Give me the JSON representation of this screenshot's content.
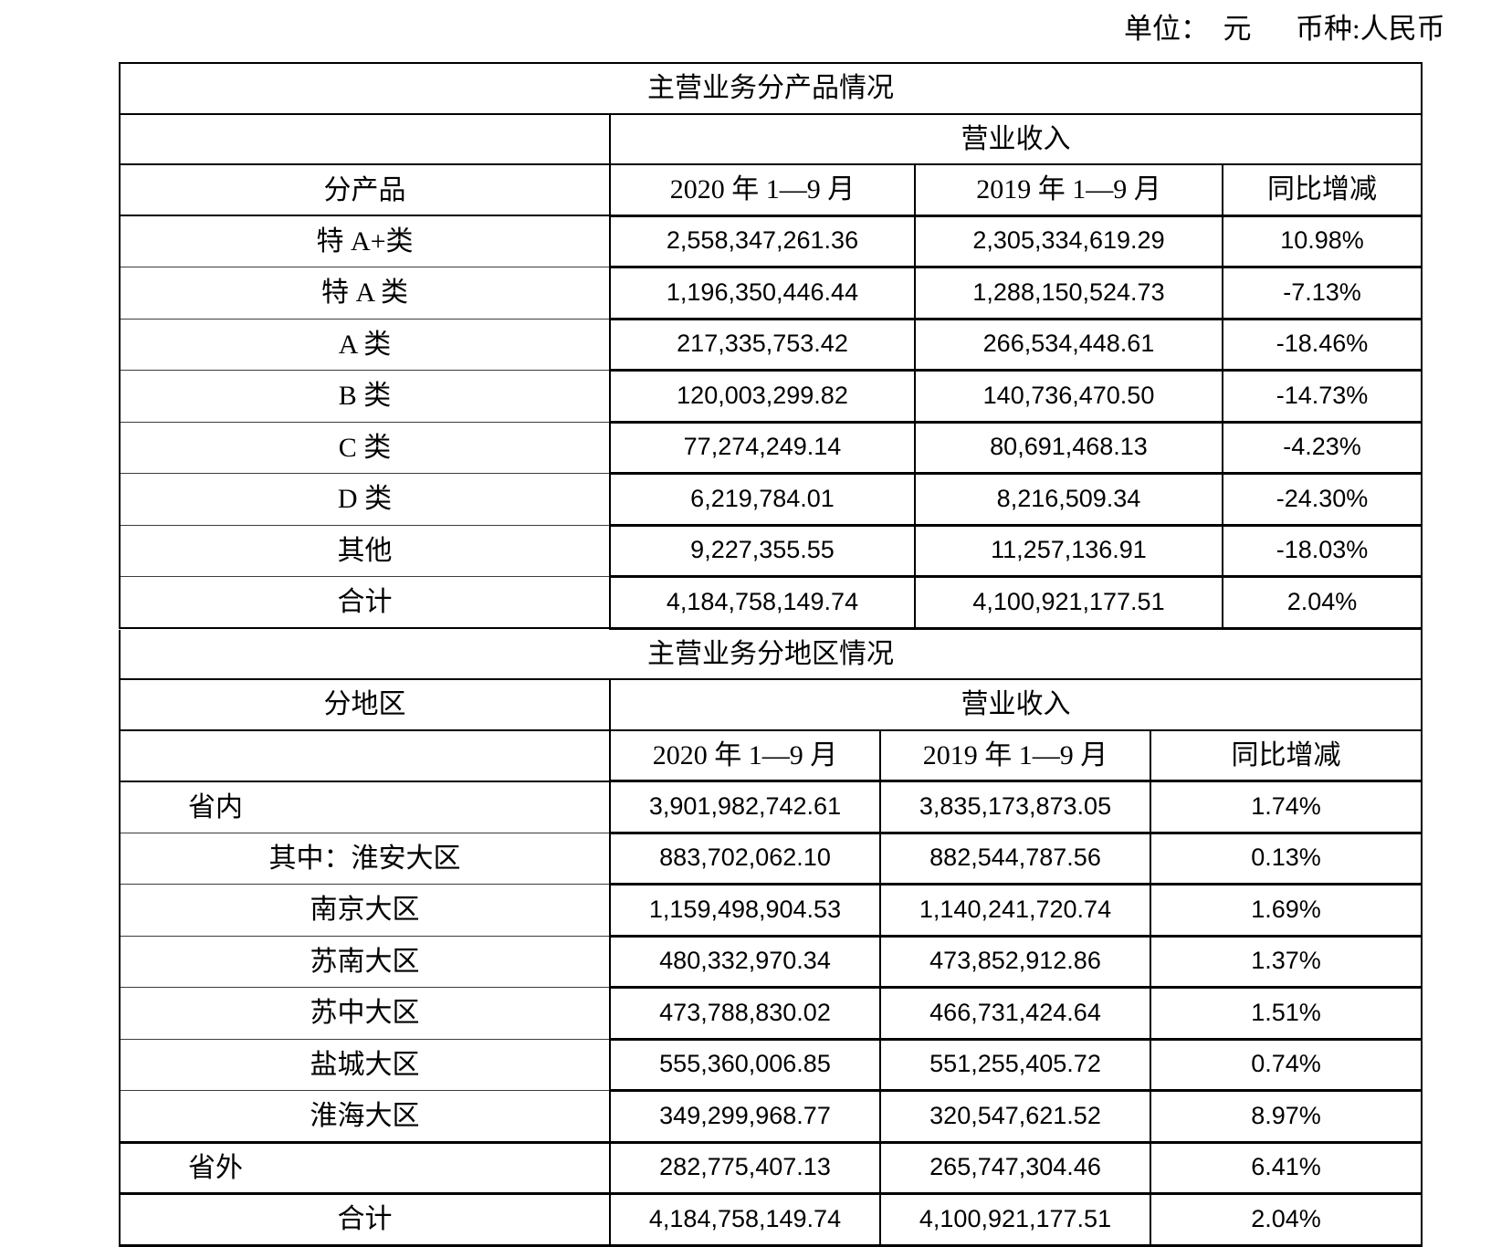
{
  "colors": {
    "background": "#ffffff",
    "text": "#000000",
    "border": "#000000"
  },
  "meta": {
    "unit_label": "单位：",
    "unit_value": "元",
    "currency_label": "币种:",
    "currency_value": "人民币"
  },
  "product_table": {
    "title": "主营业务分产品情况",
    "revenue_header": "营业收入",
    "category_header": "分产品",
    "col_2020": "2020 年 1—9 月",
    "col_2019": "2019 年 1—9 月",
    "col_yoy": "同比增减",
    "rows": [
      {
        "label": "特 A+类",
        "y2020": "2,558,347,261.36",
        "y2019": "2,305,334,619.29",
        "yoy": "10.98%"
      },
      {
        "label": "特 A 类",
        "y2020": "1,196,350,446.44",
        "y2019": "1,288,150,524.73",
        "yoy": "-7.13%"
      },
      {
        "label": "A 类",
        "y2020": "217,335,753.42",
        "y2019": "266,534,448.61",
        "yoy": "-18.46%"
      },
      {
        "label": "B 类",
        "y2020": "120,003,299.82",
        "y2019": "140,736,470.50",
        "yoy": "-14.73%"
      },
      {
        "label": "C 类",
        "y2020": "77,274,249.14",
        "y2019": "80,691,468.13",
        "yoy": "-4.23%"
      },
      {
        "label": "D 类",
        "y2020": "6,219,784.01",
        "y2019": "8,216,509.34",
        "yoy": "-24.30%"
      },
      {
        "label": "其他",
        "y2020": "9,227,355.55",
        "y2019": "11,257,136.91",
        "yoy": "-18.03%"
      },
      {
        "label": "合计",
        "y2020": "4,184,758,149.74",
        "y2019": "4,100,921,177.51",
        "yoy": "2.04%"
      }
    ]
  },
  "region_table": {
    "title": "主营业务分地区情况",
    "revenue_header": "营业收入",
    "category_header": "分地区",
    "col_2020": "2020 年 1—9 月",
    "col_2019": "2019 年 1—9 月",
    "col_yoy": "同比增减",
    "rows": [
      {
        "label": "省内",
        "y2020": "3,901,982,742.61",
        "y2019": "3,835,173,873.05",
        "yoy": "1.74%",
        "align": "left"
      },
      {
        "label": "其中：淮安大区",
        "y2020": "883,702,062.10",
        "y2019": "882,544,787.56",
        "yoy": "0.13%"
      },
      {
        "label": "南京大区",
        "y2020": "1,159,498,904.53",
        "y2019": "1,140,241,720.74",
        "yoy": "1.69%"
      },
      {
        "label": "苏南大区",
        "y2020": "480,332,970.34",
        "y2019": "473,852,912.86",
        "yoy": "1.37%"
      },
      {
        "label": "苏中大区",
        "y2020": "473,788,830.02",
        "y2019": "466,731,424.64",
        "yoy": "1.51%"
      },
      {
        "label": "盐城大区",
        "y2020": "555,360,006.85",
        "y2019": "551,255,405.72",
        "yoy": "0.74%"
      },
      {
        "label": "淮海大区",
        "y2020": "349,299,968.77",
        "y2019": "320,547,621.52",
        "yoy": "8.97%"
      },
      {
        "label": "省外",
        "y2020": "282,775,407.13",
        "y2019": "265,747,304.46",
        "yoy": "6.41%",
        "align": "left",
        "thick": true
      },
      {
        "label": "合计",
        "y2020": "4,184,758,149.74",
        "y2019": "4,100,921,177.51",
        "yoy": "2.04%",
        "thick": true
      }
    ]
  }
}
